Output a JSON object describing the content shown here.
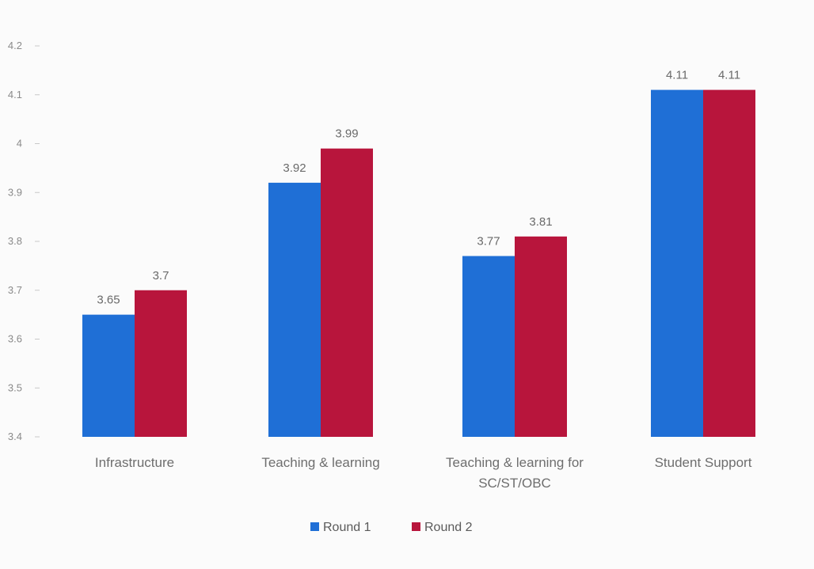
{
  "chart_data": {
    "type": "bar",
    "title": "",
    "xlabel": "",
    "ylabel": "",
    "categories": [
      [
        "Infrastructure"
      ],
      [
        "Teaching & learning"
      ],
      [
        "Teaching & learning for",
        "SC/ST/OBC"
      ],
      [
        "Student Support"
      ]
    ],
    "series": [
      {
        "name": "Round 1",
        "color": "#1f6fd6",
        "values": [
          3.65,
          3.92,
          3.77,
          4.11
        ]
      },
      {
        "name": "Round 2",
        "color": "#b8153c",
        "values": [
          3.7,
          3.99,
          3.81,
          4.11
        ]
      }
    ],
    "data_labels": [
      [
        "3.65",
        "3.92",
        "3.77",
        "4.11"
      ],
      [
        "3.7",
        "3.99",
        "3.81",
        "4.11"
      ]
    ],
    "ylim": [
      3.4,
      4.2
    ],
    "yticks": [
      3.4,
      3.5,
      3.6,
      3.7,
      3.8,
      3.9,
      4.0,
      4.1,
      4.2
    ],
    "ytick_labels": [
      "3.4",
      "3.5",
      "3.6",
      "3.7",
      "3.8",
      "3.9",
      "4",
      "4.1",
      "4.2"
    ],
    "grid": false,
    "legend_position": "bottom"
  }
}
